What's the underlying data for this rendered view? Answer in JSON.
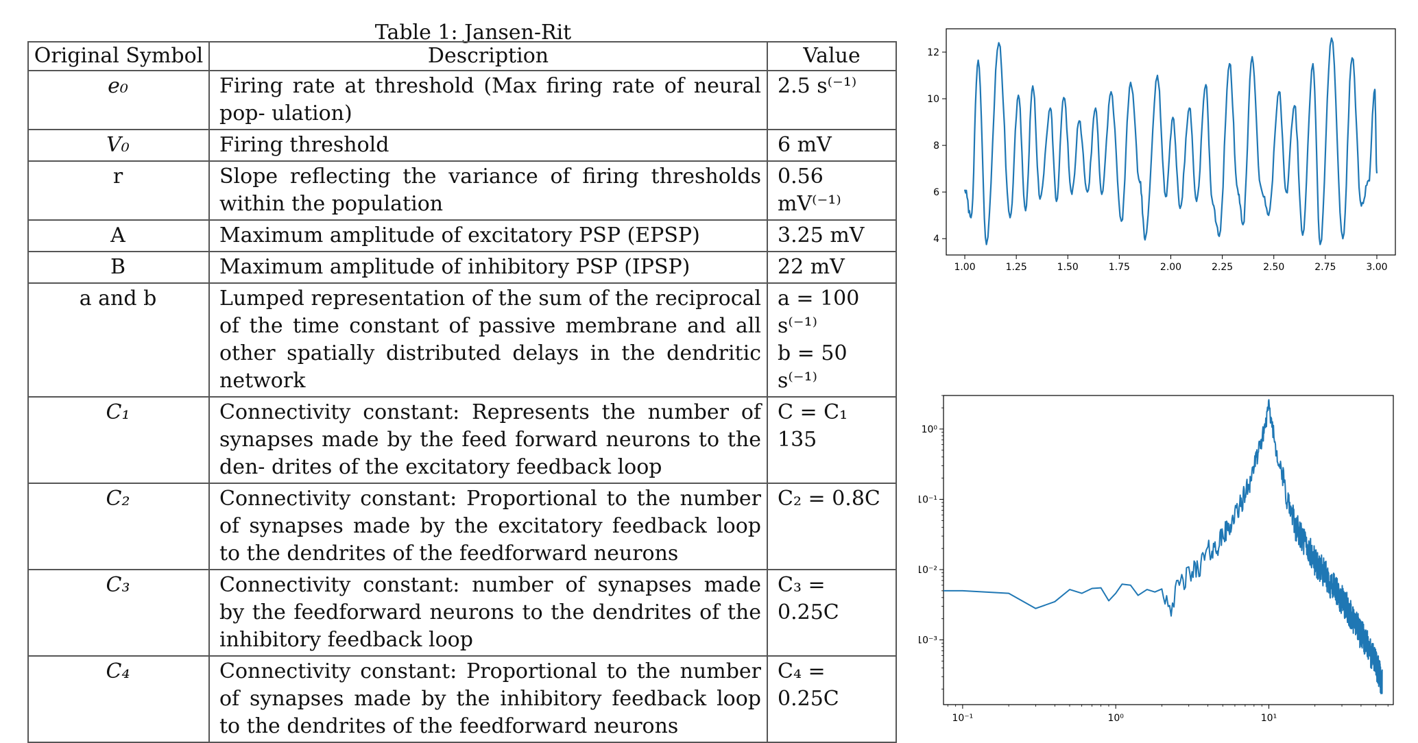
{
  "table": {
    "caption": "Table 1: Jansen-Rit",
    "headers": [
      "Original Symbol",
      "Description",
      "Value"
    ],
    "rows": [
      {
        "symbol": "e₀",
        "desc": "Firing rate at threshold (Max firing rate of neural pop- ulation)",
        "value": [
          "2.5 s⁽⁻¹⁾"
        ]
      },
      {
        "symbol": "V₀",
        "desc": "Firing threshold",
        "value": [
          "6 mV"
        ]
      },
      {
        "symbol": "r",
        "desc": "Slope reflecting the variance of firing thresholds within the population",
        "value": [
          "0.56 mV⁽⁻¹⁾"
        ]
      },
      {
        "symbol": "A",
        "desc": "Maximum amplitude of excitatory PSP (EPSP)",
        "value": [
          "3.25 mV"
        ]
      },
      {
        "symbol": "B",
        "desc": "Maximum amplitude of inhibitory PSP (IPSP)",
        "value": [
          "22 mV"
        ]
      },
      {
        "symbol": "a and b",
        "desc": "Lumped representation of the sum of the reciprocal of the time constant of passive membrane and all other spatially distributed delays in the dendritic network",
        "value": [
          "a = 100 s⁽⁻¹⁾",
          "b = 50 s⁽⁻¹⁾"
        ]
      },
      {
        "symbol": "C₁",
        "desc": "Connectivity constant: Represents the number of synapses made by the feed forward neurons to the den- drites of the excitatory feedback loop",
        "value": [
          "C = C₁",
          "135"
        ]
      },
      {
        "symbol": "C₂",
        "desc": "Connectivity constant: Proportional to the number of synapses made by the excitatory feedback loop to the dendrites of the feedforward neurons",
        "value": [
          "C₂ = 0.8C"
        ]
      },
      {
        "symbol": "C₃",
        "desc": "Connectivity constant: number of synapses made by the feedforward neurons to the dendrites of the inhibitory feedback loop",
        "value": [
          "C₃ = 0.25C"
        ]
      },
      {
        "symbol": "C₄",
        "desc": "Connectivity constant: Proportional to the number of synapses made by the inhibitory feedback loop to the dendrites of the feedforward neurons",
        "value": [
          "C₄ = 0.25C"
        ]
      }
    ]
  },
  "chart_data": [
    {
      "type": "line",
      "title": "",
      "xlabel": "",
      "ylabel": "",
      "xlim": [
        0.91,
        3.09
      ],
      "ylim": [
        3.3,
        13.0
      ],
      "xticks": [
        "1.00",
        "1.25",
        "1.50",
        "1.75",
        "2.00",
        "2.25",
        "2.50",
        "2.75",
        "3.00"
      ],
      "yticks": [
        "4",
        "6",
        "8",
        "10",
        "12"
      ],
      "line_color": "#1f77b4",
      "peaks": [
        [
          1.0,
          6.1
        ],
        [
          1.03,
          4.9
        ],
        [
          1.065,
          11.65
        ],
        [
          1.105,
          3.75
        ],
        [
          1.165,
          12.4
        ],
        [
          1.22,
          4.9
        ],
        [
          1.26,
          10.15
        ],
        [
          1.295,
          5.2
        ],
        [
          1.33,
          10.55
        ],
        [
          1.365,
          5.7
        ],
        [
          1.415,
          9.6
        ],
        [
          1.445,
          5.6
        ],
        [
          1.48,
          10.05
        ],
        [
          1.52,
          5.9
        ],
        [
          1.555,
          9.05
        ],
        [
          1.595,
          6.0
        ],
        [
          1.635,
          9.6
        ],
        [
          1.665,
          5.9
        ],
        [
          1.71,
          10.3
        ],
        [
          1.76,
          4.75
        ],
        [
          1.805,
          10.7
        ],
        [
          1.85,
          6.4
        ],
        [
          1.875,
          3.95
        ],
        [
          1.935,
          11.0
        ],
        [
          1.975,
          5.8
        ],
        [
          2.01,
          9.2
        ],
        [
          2.045,
          5.3
        ],
        [
          2.09,
          9.6
        ],
        [
          2.125,
          5.6
        ],
        [
          2.17,
          10.6
        ],
        [
          2.2,
          5.7
        ],
        [
          2.235,
          4.1
        ],
        [
          2.285,
          11.5
        ],
        [
          2.325,
          6.1
        ],
        [
          2.35,
          4.6
        ],
        [
          2.395,
          11.8
        ],
        [
          2.435,
          6.3
        ],
        [
          2.475,
          5.0
        ],
        [
          2.525,
          10.3
        ],
        [
          2.56,
          6.0
        ],
        [
          2.6,
          9.7
        ],
        [
          2.64,
          4.15
        ],
        [
          2.69,
          11.5
        ],
        [
          2.725,
          3.75
        ],
        [
          2.78,
          12.6
        ],
        [
          2.835,
          4.0
        ],
        [
          2.88,
          11.75
        ],
        [
          2.925,
          5.4
        ],
        [
          2.96,
          6.5
        ],
        [
          2.99,
          10.4
        ],
        [
          3.0,
          6.8
        ]
      ]
    },
    {
      "type": "line",
      "title": "",
      "xlabel": "",
      "ylabel": "",
      "xscale": "log",
      "yscale": "log",
      "xlim": [
        0.075,
        65
      ],
      "ylim": [
        0.00012,
        3.0
      ],
      "xticks": [
        "10⁻¹",
        "10⁰",
        "10¹"
      ],
      "yticks": [
        "10⁰",
        "10⁻¹",
        "10⁻²",
        "10⁻³"
      ],
      "line_color": "#1f77b4",
      "envelope": [
        [
          0.075,
          0.005
        ],
        [
          0.1,
          0.005
        ],
        [
          0.2,
          0.0046
        ],
        [
          0.3,
          0.0028
        ],
        [
          0.4,
          0.0035
        ],
        [
          0.5,
          0.0052
        ],
        [
          0.6,
          0.0046
        ],
        [
          0.7,
          0.0054
        ],
        [
          0.8,
          0.0055
        ],
        [
          0.9,
          0.0036
        ],
        [
          1.0,
          0.0046
        ],
        [
          1.1,
          0.0062
        ],
        [
          1.25,
          0.006
        ],
        [
          1.4,
          0.0043
        ],
        [
          1.6,
          0.0052
        ],
        [
          1.8,
          0.0048
        ],
        [
          2.0,
          0.0053
        ],
        [
          2.3,
          0.0031
        ],
        [
          2.6,
          0.006
        ],
        [
          3.0,
          0.0082
        ],
        [
          3.5,
          0.011
        ],
        [
          4.0,
          0.018
        ],
        [
          4.5,
          0.02
        ],
        [
          5.0,
          0.03
        ],
        [
          5.5,
          0.04
        ],
        [
          6.0,
          0.06
        ],
        [
          6.5,
          0.08
        ],
        [
          7.0,
          0.12
        ],
        [
          7.5,
          0.18
        ],
        [
          8.0,
          0.3
        ],
        [
          8.5,
          0.45
        ],
        [
          9.0,
          0.7
        ],
        [
          9.5,
          1.2
        ],
        [
          10.0,
          2.0
        ],
        [
          10.5,
          1.2
        ],
        [
          11.0,
          0.6
        ],
        [
          12.0,
          0.25
        ],
        [
          13.0,
          0.12
        ],
        [
          14.0,
          0.06
        ],
        [
          16.0,
          0.03
        ],
        [
          18.0,
          0.02
        ],
        [
          20.0,
          0.013
        ],
        [
          22.0,
          0.01
        ],
        [
          25.0,
          0.0065
        ],
        [
          28.0,
          0.0045
        ],
        [
          32.0,
          0.003
        ],
        [
          36.0,
          0.0018
        ],
        [
          40.0,
          0.0012
        ],
        [
          45.0,
          0.00075
        ],
        [
          50.0,
          0.00045
        ],
        [
          55.0,
          0.00025
        ]
      ]
    }
  ]
}
